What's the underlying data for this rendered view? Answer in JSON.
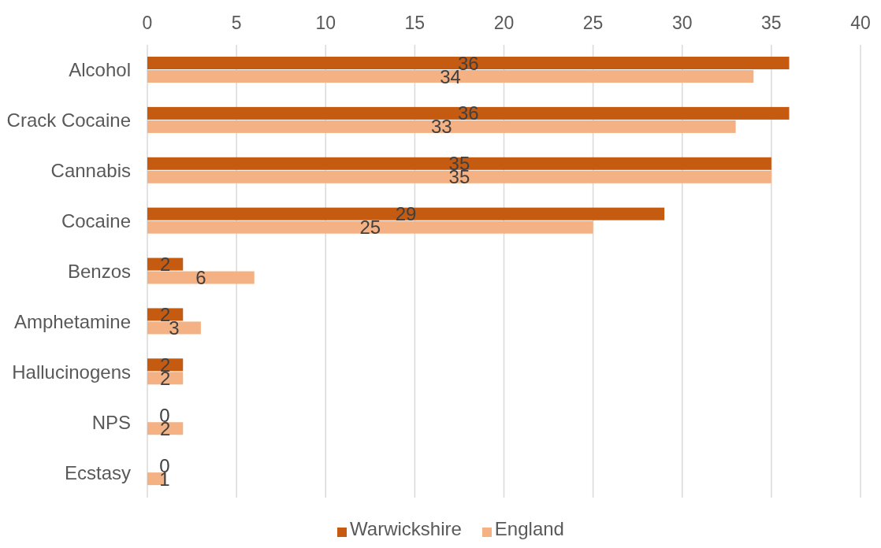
{
  "chart_data": {
    "type": "bar",
    "orientation": "horizontal",
    "categories": [
      "Alcohol",
      "Crack Cocaine",
      "Cannabis",
      "Cocaine",
      "Benzos",
      "Amphetamine",
      "Hallucinogens",
      "NPS",
      "Ecstasy"
    ],
    "series": [
      {
        "name": "Warwickshire",
        "color": "#c55a11",
        "values": [
          36,
          36,
          35,
          29,
          2,
          2,
          2,
          0,
          0
        ]
      },
      {
        "name": "England",
        "color": "#f4b183",
        "values": [
          34,
          33,
          35,
          25,
          6,
          3,
          2,
          2,
          1
        ]
      }
    ],
    "xlim": [
      0,
      40
    ],
    "xticks": [
      0,
      5,
      10,
      15,
      20,
      25,
      30,
      35,
      40
    ],
    "grid": "x",
    "legend": "bottom",
    "data_labels": true
  }
}
